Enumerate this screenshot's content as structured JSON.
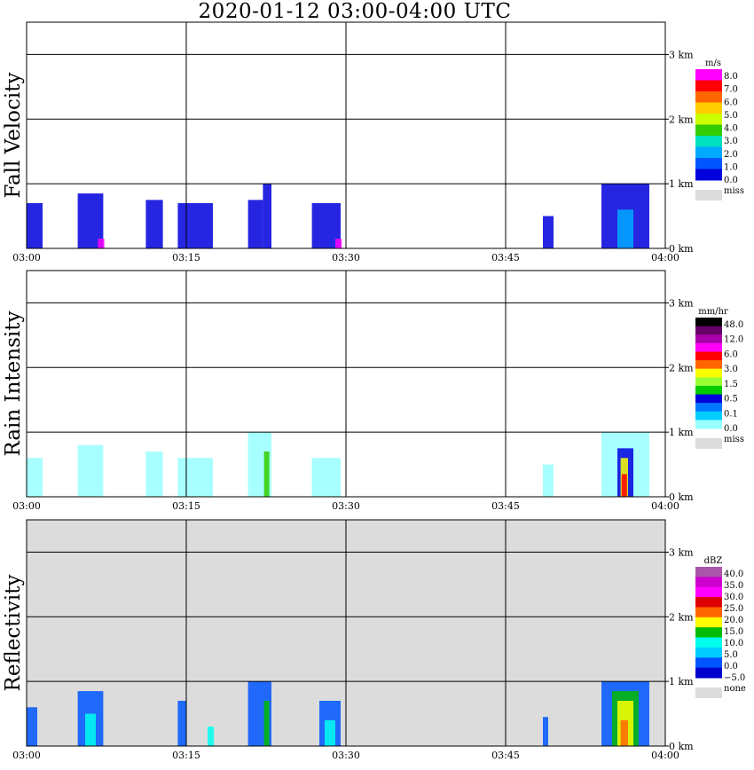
{
  "title": "2020-01-12   03:00-04:00 UTC",
  "time_ticks": [
    "03:00",
    "03:15",
    "03:30",
    "03:45",
    "04:00"
  ],
  "height_ticks": [
    "0 km",
    "1 km",
    "2 km",
    "3 km"
  ],
  "chart_data": [
    {
      "type": "heatmap",
      "ylabel": "Fall Velocity",
      "colorbar": {
        "unit": "m/s",
        "labels": [
          "8.0",
          "7.0",
          "6.0",
          "5.0",
          "4.0",
          "3.0",
          "2.0",
          "1.0",
          "0.0"
        ],
        "colors": [
          "#ff00ff",
          "#ff0000",
          "#ff6600",
          "#ffcc00",
          "#ccff00",
          "#33cc00",
          "#00e0c0",
          "#00aaff",
          "#0055ff",
          "#0000dd"
        ],
        "missing_label": "miss",
        "missing_color": "#dcdcdc"
      },
      "xlim": [
        "03:00",
        "04:00"
      ],
      "ylim_km": [
        0,
        3.5
      ],
      "background": "#ffffff",
      "echoes": [
        {
          "t": [
            0,
            1.5
          ],
          "top_km": 0.7,
          "color": "#0000dd"
        },
        {
          "t": [
            4.8,
            7.2
          ],
          "top_km": 0.85,
          "color": "#0000dd"
        },
        {
          "t": [
            6.7,
            7.3
          ],
          "top_km": 0.15,
          "color": "#ff00ff"
        },
        {
          "t": [
            11.2,
            12.8
          ],
          "top_km": 0.75,
          "color": "#0000dd"
        },
        {
          "t": [
            14.2,
            17.5
          ],
          "top_km": 0.7,
          "color": "#0000dd"
        },
        {
          "t": [
            20.8,
            22.2
          ],
          "top_km": 0.75,
          "color": "#0000dd"
        },
        {
          "t": [
            22.2,
            23.0
          ],
          "top_km": 1.0,
          "color": "#0000dd"
        },
        {
          "t": [
            26.8,
            29.5
          ],
          "top_km": 0.7,
          "color": "#0000dd"
        },
        {
          "t": [
            29.0,
            29.6
          ],
          "top_km": 0.15,
          "color": "#ff00ff"
        },
        {
          "t": [
            48.5,
            49.5
          ],
          "top_km": 0.5,
          "color": "#0000dd"
        },
        {
          "t": [
            54.0,
            58.5
          ],
          "top_km": 1.0,
          "color": "#0000dd"
        },
        {
          "t": [
            55.5,
            57.0
          ],
          "top_km": 0.6,
          "color": "#00aaff"
        }
      ]
    },
    {
      "type": "heatmap",
      "ylabel": "Rain Intensity",
      "colorbar": {
        "unit": "mm/hr",
        "labels": [
          "48.0",
          "12.0",
          "6.0",
          "3.0",
          "1.5",
          "0.5",
          "0.1",
          "0.0"
        ],
        "colors": [
          "#000000",
          "#660066",
          "#aa00aa",
          "#ff00ff",
          "#ff0000",
          "#ff6600",
          "#ffff00",
          "#99ff33",
          "#00cc00",
          "#0000dd",
          "#0077ff",
          "#00ccff",
          "#99ffff"
        ],
        "missing_label": "miss",
        "missing_color": "#dcdcdc"
      },
      "xlim": [
        "03:00",
        "04:00"
      ],
      "ylim_km": [
        0,
        3.5
      ],
      "background": "#ffffff",
      "echoes": [
        {
          "t": [
            0,
            1.5
          ],
          "top_km": 0.6,
          "color": "#99ffff"
        },
        {
          "t": [
            4.8,
            7.2
          ],
          "top_km": 0.8,
          "color": "#99ffff"
        },
        {
          "t": [
            11.2,
            12.8
          ],
          "top_km": 0.7,
          "color": "#99ffff"
        },
        {
          "t": [
            14.2,
            17.5
          ],
          "top_km": 0.6,
          "color": "#99ffff"
        },
        {
          "t": [
            20.8,
            23.0
          ],
          "top_km": 1.0,
          "color": "#99ffff"
        },
        {
          "t": [
            22.3,
            22.8
          ],
          "top_km": 0.7,
          "color": "#33cc00"
        },
        {
          "t": [
            26.8,
            29.5
          ],
          "top_km": 0.6,
          "color": "#99ffff"
        },
        {
          "t": [
            48.5,
            49.5
          ],
          "top_km": 0.5,
          "color": "#99ffff"
        },
        {
          "t": [
            54.0,
            58.5
          ],
          "top_km": 1.0,
          "color": "#99ffff"
        },
        {
          "t": [
            55.5,
            57.0
          ],
          "top_km": 0.75,
          "color": "#0000dd"
        },
        {
          "t": [
            55.8,
            56.5
          ],
          "top_km": 0.6,
          "color": "#ffff00"
        },
        {
          "t": [
            55.9,
            56.4
          ],
          "top_km": 0.35,
          "color": "#ff0000"
        }
      ]
    },
    {
      "type": "heatmap",
      "ylabel": "Reflectivity",
      "colorbar": {
        "unit": "dBZ",
        "labels": [
          "40.0",
          "35.0",
          "30.0",
          "25.0",
          "20.0",
          "15.0",
          "10.0",
          "5.0",
          "0.0",
          "−5.0"
        ],
        "colors": [
          "#aa55aa",
          "#cc00cc",
          "#ff00ff",
          "#dd0000",
          "#ff6600",
          "#ffff00",
          "#00bb00",
          "#00ffee",
          "#00ccff",
          "#0055ff",
          "#0000cc"
        ],
        "missing_label": "none",
        "missing_color": "#dcdcdc"
      },
      "xlim": [
        "03:00",
        "04:00"
      ],
      "ylim_km": [
        0,
        3.5
      ],
      "background": "#dcdcdc",
      "echoes": [
        {
          "t": [
            0,
            1.0
          ],
          "top_km": 0.6,
          "color": "#0055ff"
        },
        {
          "t": [
            4.8,
            7.2
          ],
          "top_km": 0.85,
          "color": "#0055ff"
        },
        {
          "t": [
            5.5,
            6.5
          ],
          "top_km": 0.5,
          "color": "#00ffee"
        },
        {
          "t": [
            14.2,
            15.0
          ],
          "top_km": 0.7,
          "color": "#0055ff"
        },
        {
          "t": [
            17.0,
            17.6
          ],
          "top_km": 0.3,
          "color": "#00ffee"
        },
        {
          "t": [
            20.8,
            23.0
          ],
          "top_km": 1.0,
          "color": "#0055ff"
        },
        {
          "t": [
            22.3,
            22.8
          ],
          "top_km": 0.7,
          "color": "#00bb00"
        },
        {
          "t": [
            27.5,
            29.5
          ],
          "top_km": 0.7,
          "color": "#0055ff"
        },
        {
          "t": [
            28.0,
            29.0
          ],
          "top_km": 0.4,
          "color": "#00ffee"
        },
        {
          "t": [
            48.5,
            49.0
          ],
          "top_km": 0.45,
          "color": "#0055ff"
        },
        {
          "t": [
            54.0,
            58.5
          ],
          "top_km": 1.0,
          "color": "#0055ff"
        },
        {
          "t": [
            55.0,
            57.5
          ],
          "top_km": 0.85,
          "color": "#00bb00"
        },
        {
          "t": [
            55.5,
            57.0
          ],
          "top_km": 0.7,
          "color": "#ffff00"
        },
        {
          "t": [
            55.8,
            56.5
          ],
          "top_km": 0.4,
          "color": "#ff6600"
        }
      ]
    }
  ]
}
